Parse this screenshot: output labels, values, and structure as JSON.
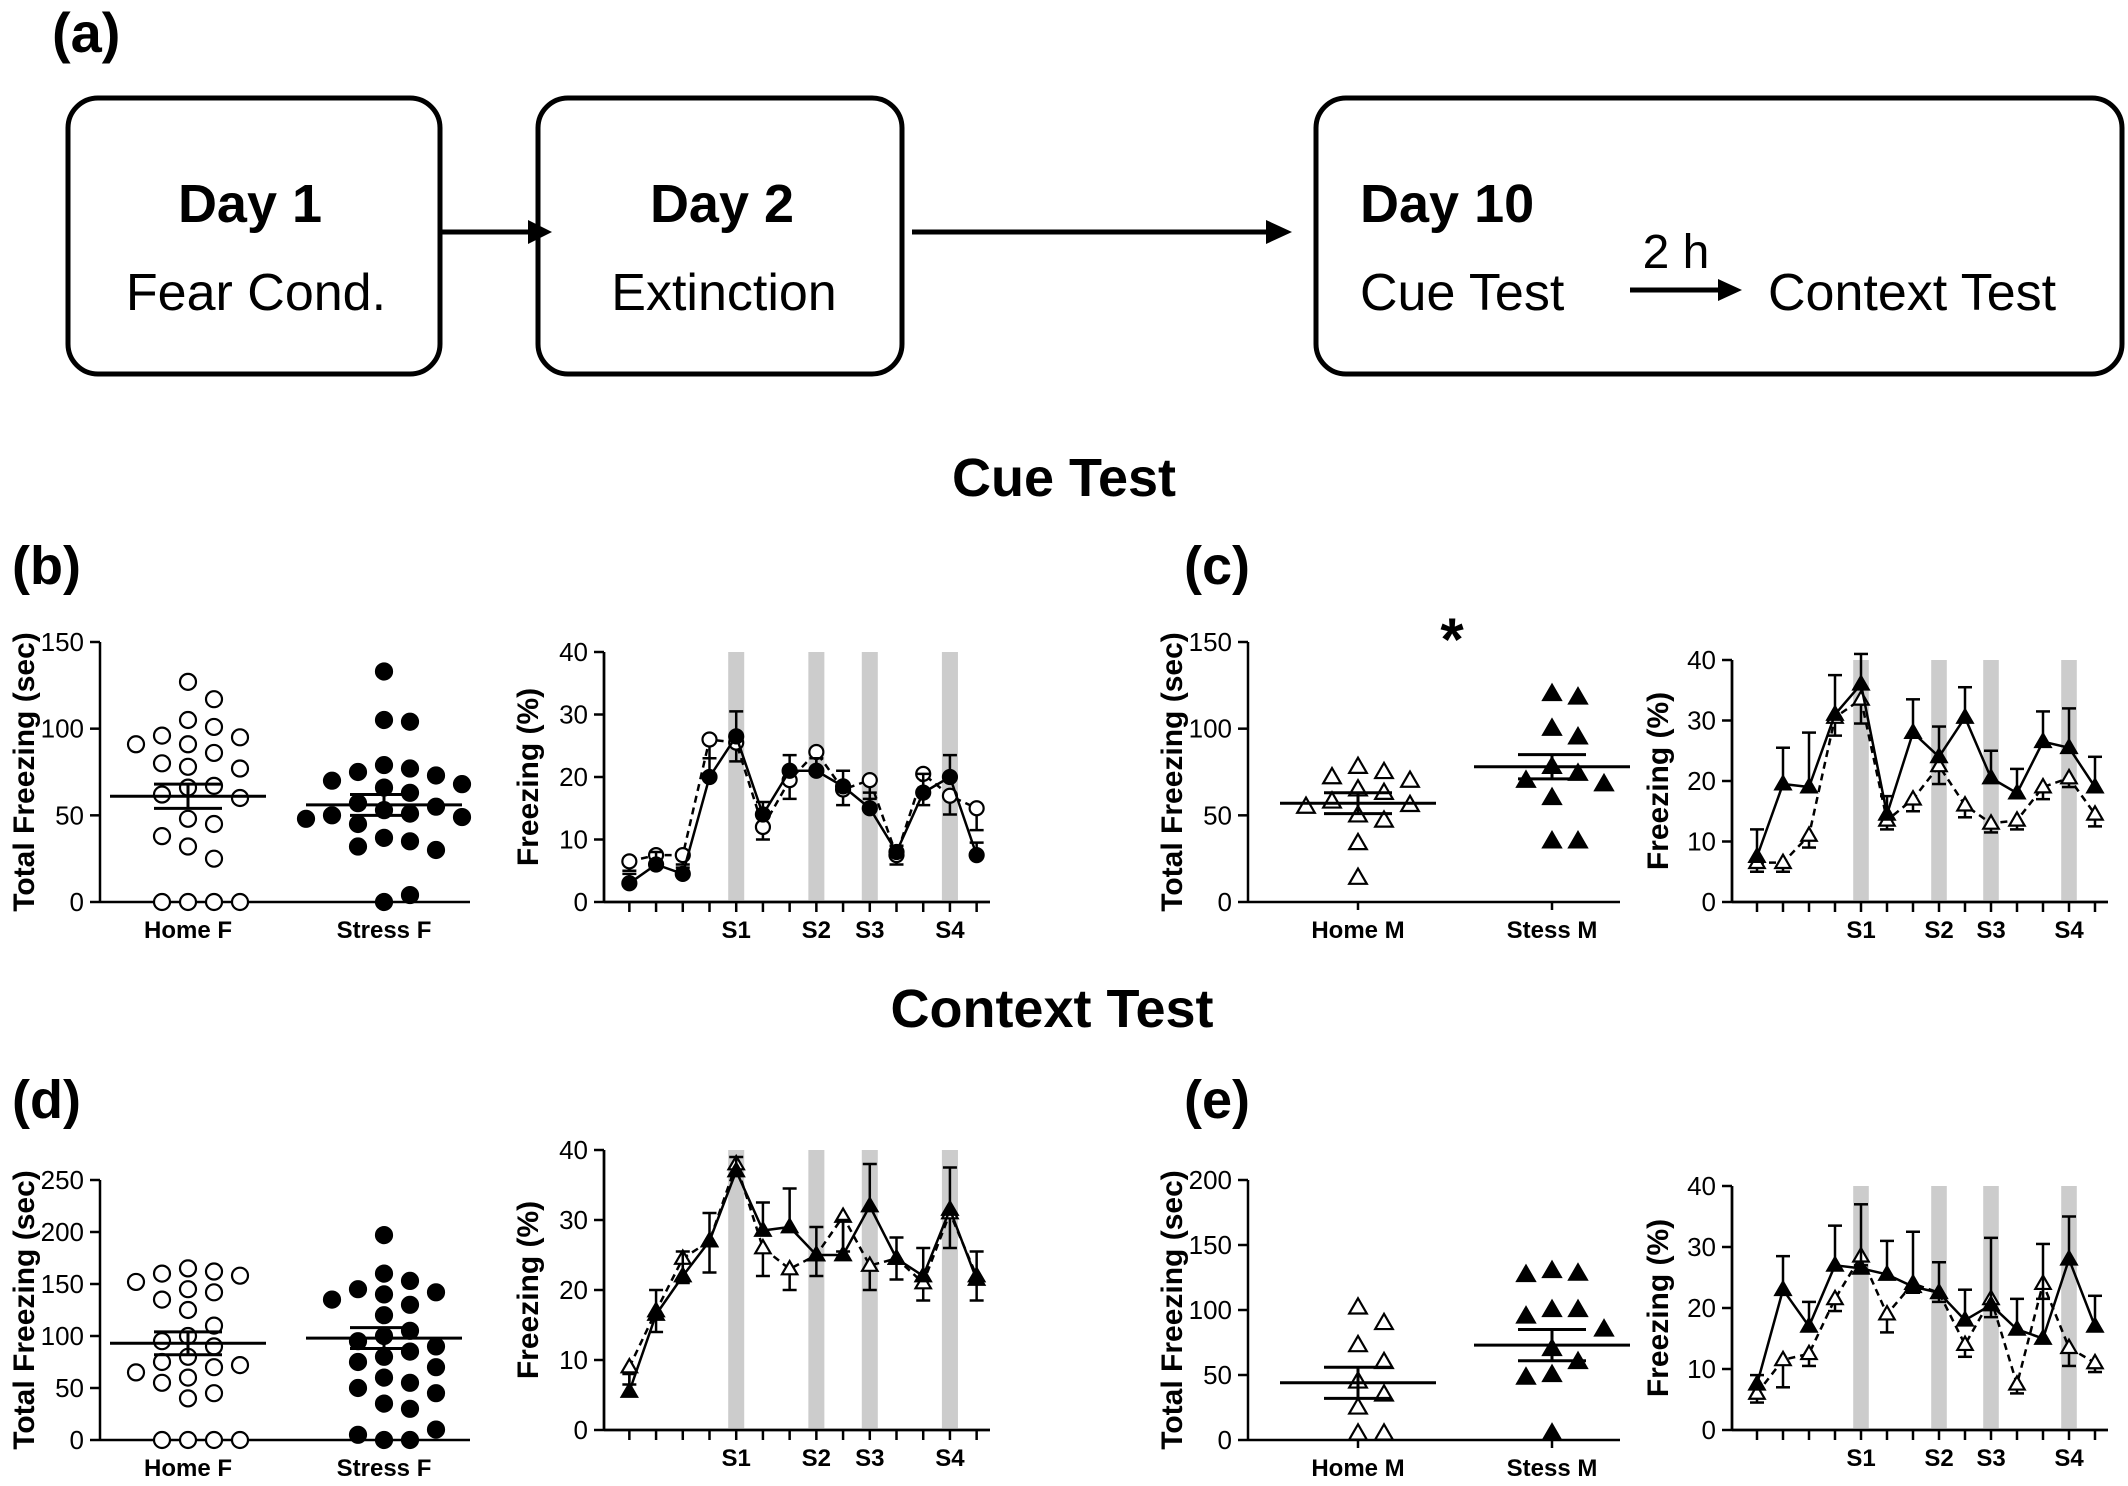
{
  "timeline": {
    "panel_label": "(a)",
    "day1": {
      "day": "Day 1",
      "phase": "Fear Cond."
    },
    "day2": {
      "day": "Day 2",
      "phase": "Extinction"
    },
    "day10": {
      "day": "Day 10",
      "phase1": "Cue Test",
      "interval": "2 h",
      "phase2": "Context Test"
    }
  },
  "sections": {
    "cue": "Cue Test",
    "context": "Context Test"
  },
  "chart_data": [
    {
      "id": "b-scatter",
      "panel": "(b)",
      "type": "scatter",
      "ylabel": "Total Freezing (sec)",
      "ylim": [
        0,
        150
      ],
      "yticks": [
        0,
        50,
        100,
        150
      ],
      "categories": [
        "Home F",
        "Stress F"
      ],
      "markers": [
        "circle-open",
        "circle-filled"
      ],
      "means": [
        61,
        56
      ],
      "sems": [
        7,
        6
      ],
      "points": [
        [
          127,
          117,
          105,
          101,
          96,
          95,
          91,
          91,
          86,
          80,
          78,
          77,
          67,
          66,
          62,
          60,
          48,
          45,
          38,
          32,
          25,
          0,
          0,
          0,
          0
        ],
        [
          133,
          105,
          104,
          79,
          77,
          75,
          73,
          70,
          68,
          66,
          63,
          57,
          55,
          53,
          51,
          50,
          49,
          48,
          45,
          37,
          35,
          32,
          30,
          0,
          4
        ]
      ]
    },
    {
      "id": "b-line",
      "type": "line",
      "ylabel": "Freezing (%)",
      "ylim": [
        0,
        40
      ],
      "yticks": [
        0,
        10,
        20,
        30,
        40
      ],
      "xticks": [
        "S1",
        "S2",
        "S3",
        "S4"
      ],
      "shock_bins": [
        4,
        7,
        9,
        12
      ],
      "series": [
        {
          "marker": "circle-filled",
          "style": "solid",
          "values": [
            3,
            6,
            4.5,
            20,
            26.5,
            14,
            21,
            21,
            18.5,
            15,
            8,
            17.5,
            20,
            7.5
          ],
          "errors": [
            1.5,
            2,
            1,
            3,
            4,
            2,
            2.5,
            2,
            2.5,
            2.5,
            1,
            3,
            3.5,
            2
          ]
        },
        {
          "marker": "circle-open",
          "style": "dashed",
          "values": [
            6.5,
            7.5,
            7.5,
            26,
            25.5,
            12,
            19.5,
            24,
            18,
            19.5,
            7.5,
            20.5,
            17,
            15
          ],
          "errors": [
            1.5,
            2,
            1.5,
            3,
            3,
            2,
            3,
            3.5,
            2.5,
            3,
            1.5,
            5,
            3,
            3.5
          ]
        }
      ]
    },
    {
      "id": "c-scatter",
      "panel": "(c)",
      "type": "scatter",
      "ylabel": "Total Freezing (sec)",
      "ylim": [
        0,
        150
      ],
      "yticks": [
        0,
        50,
        100,
        150
      ],
      "categories": [
        "Home M",
        "Stess M"
      ],
      "markers": [
        "triangle-open",
        "triangle-open-filled"
      ],
      "means": [
        57,
        78
      ],
      "sems": [
        6,
        7
      ],
      "significance": "*",
      "points": [
        [
          78,
          75,
          72,
          70,
          65,
          63,
          58,
          56,
          55,
          50,
          47,
          34,
          14
        ],
        [
          120,
          118,
          100,
          95,
          78,
          74,
          70,
          68,
          60,
          35,
          35
        ]
      ]
    },
    {
      "id": "c-line",
      "type": "line",
      "ylabel": "Freezing (%)",
      "ylim": [
        0,
        40
      ],
      "yticks": [
        0,
        10,
        20,
        30,
        40
      ],
      "xticks": [
        "S1",
        "S2",
        "S3",
        "S4"
      ],
      "shock_bins": [
        4,
        7,
        9,
        12
      ],
      "series": [
        {
          "marker": "triangle-filled",
          "style": "solid",
          "values": [
            7.5,
            19.5,
            19,
            31,
            36,
            14.5,
            28,
            24,
            30.5,
            20.5,
            18,
            26.5,
            25.5,
            19
          ],
          "errors": [
            4.5,
            6,
            9,
            6.5,
            5,
            3,
            5.5,
            5,
            5,
            4.5,
            4,
            5,
            6.5,
            5
          ]
        },
        {
          "marker": "triangle-open",
          "style": "dashed",
          "values": [
            6.5,
            6.5,
            11,
            30.5,
            33.5,
            13.5,
            17,
            22.5,
            16,
            13,
            13.5,
            19,
            20.5,
            14.5
          ],
          "errors": [
            1.5,
            1.5,
            2,
            3,
            4,
            1.5,
            2,
            3,
            2,
            1.5,
            1.5,
            2,
            1.5,
            2
          ]
        }
      ]
    },
    {
      "id": "d-scatter",
      "panel": "(d)",
      "type": "scatter",
      "ylabel": "Total Freezing (sec)",
      "ylim": [
        0,
        250
      ],
      "yticks": [
        0,
        50,
        100,
        150,
        200,
        250
      ],
      "categories": [
        "Home F",
        "Stress F"
      ],
      "markers": [
        "circle-open",
        "circle-filled"
      ],
      "means": [
        93,
        98
      ],
      "sems": [
        11,
        10
      ],
      "points": [
        [
          165,
          162,
          160,
          158,
          152,
          145,
          142,
          135,
          125,
          110,
          100,
          95,
          90,
          80,
          75,
          72,
          70,
          65,
          60,
          55,
          45,
          40,
          0,
          0,
          0,
          0
        ],
        [
          197,
          160,
          153,
          145,
          142,
          140,
          135,
          130,
          120,
          105,
          100,
          95,
          90,
          85,
          80,
          75,
          70,
          60,
          55,
          50,
          45,
          35,
          30,
          0,
          0,
          5,
          10
        ]
      ]
    },
    {
      "id": "d-line",
      "type": "line",
      "ylabel": "Freezing (%)",
      "ylim": [
        0,
        40
      ],
      "yticks": [
        0,
        10,
        20,
        30,
        40
      ],
      "xticks": [
        "S1",
        "S2",
        "S3",
        "S4"
      ],
      "shock_bins": [
        4,
        7,
        9,
        12
      ],
      "series": [
        {
          "marker": "triangle-filled",
          "style": "solid",
          "values": [
            5.5,
            16.5,
            22,
            27,
            37,
            28.5,
            29,
            25,
            25,
            32,
            24.5,
            22,
            31.5,
            21.5
          ],
          "errors": [
            2.5,
            3.5,
            3.5,
            4,
            2,
            4,
            5.5,
            4,
            5,
            6,
            3,
            4,
            6,
            4
          ]
        },
        {
          "marker": "triangle-open",
          "style": "dashed",
          "values": [
            9,
            17,
            24.5,
            27,
            38,
            26,
            23,
            25,
            30.5,
            23.5,
            24.5,
            21,
            31,
            22
          ],
          "errors": [
            2.5,
            3,
            3.5,
            4.5,
            1.5,
            4,
            3,
            3,
            5,
            3.5,
            3,
            2.5,
            5,
            3.5
          ]
        }
      ]
    },
    {
      "id": "e-scatter",
      "panel": "(e)",
      "type": "scatter",
      "ylabel": "Total Freezing (sec)",
      "ylim": [
        0,
        200
      ],
      "yticks": [
        0,
        50,
        100,
        150,
        200
      ],
      "categories": [
        "Home M",
        "Stess M"
      ],
      "markers": [
        "triangle-open",
        "triangle-filled"
      ],
      "means": [
        44,
        73
      ],
      "sems": [
        12,
        12
      ],
      "points": [
        [
          102,
          90,
          73,
          60,
          45,
          35,
          25,
          5,
          5
        ],
        [
          130,
          128,
          127,
          100,
          100,
          95,
          85,
          70,
          60,
          50,
          48,
          5
        ]
      ]
    },
    {
      "id": "e-line",
      "type": "line",
      "ylabel": "Freezing (%)",
      "ylim": [
        0,
        40
      ],
      "yticks": [
        0,
        10,
        20,
        30,
        40
      ],
      "xticks": [
        "S1",
        "S2",
        "S3",
        "S4"
      ],
      "shock_bins": [
        4,
        7,
        9,
        12
      ],
      "series": [
        {
          "marker": "triangle-filled",
          "style": "solid",
          "values": [
            7.5,
            23,
            17,
            27,
            26.5,
            25.5,
            23.5,
            22.5,
            18,
            20.5,
            16.5,
            15,
            28,
            17
          ],
          "errors": [
            1.5,
            5.5,
            4,
            6.5,
            10.5,
            5.5,
            9,
            5,
            5,
            11,
            5,
            15.5,
            7,
            5
          ]
        },
        {
          "marker": "triangle-open",
          "style": "dashed",
          "values": [
            6,
            11.5,
            12.5,
            21.5,
            28.5,
            19,
            24,
            22.5,
            14,
            21.5,
            7.5,
            24,
            13.5,
            11
          ],
          "errors": [
            1.5,
            4.5,
            2,
            2,
            1.5,
            3,
            1.5,
            1.5,
            2,
            3,
            1.5,
            2.5,
            3,
            1.5
          ]
        }
      ]
    }
  ]
}
